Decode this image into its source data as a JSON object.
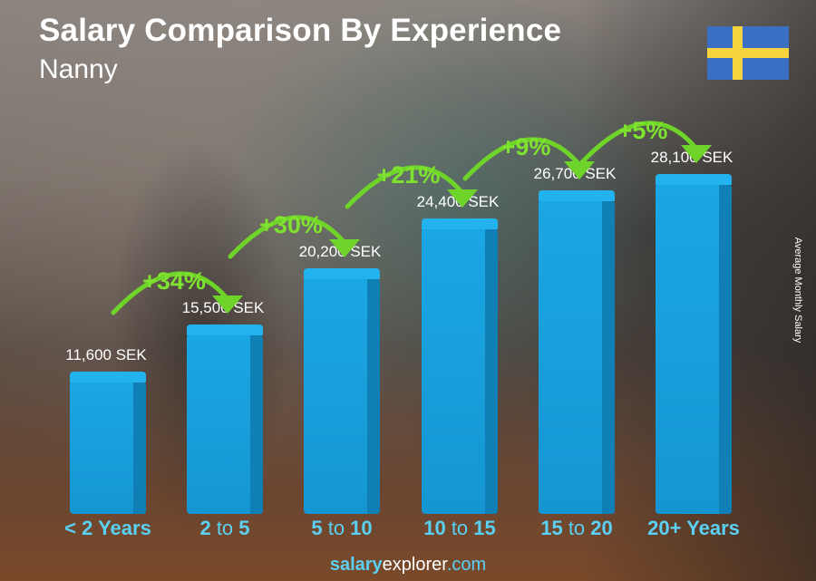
{
  "header": {
    "title": "Salary Comparison By Experience",
    "subtitle": "Nanny"
  },
  "flag": {
    "country": "Sweden",
    "icon": "sweden-flag-icon",
    "blue": "#3a6fc4",
    "yellow": "#f5d33c"
  },
  "y_axis_label": "Average Monthly Salary",
  "bars": [
    {
      "label": "11,600 SEK",
      "cat_a": "< 2 Years",
      "cat_b": "",
      "cat_c": ""
    },
    {
      "label": "15,500 SEK",
      "cat_a": "2",
      "cat_b": " to ",
      "cat_c": "5",
      "change": "+34%"
    },
    {
      "label": "20,200 SEK",
      "cat_a": "5",
      "cat_b": " to ",
      "cat_c": "10",
      "change": "+30%"
    },
    {
      "label": "24,400 SEK",
      "cat_a": "10",
      "cat_b": " to ",
      "cat_c": "15",
      "change": "+21%"
    },
    {
      "label": "26,700 SEK",
      "cat_a": "15",
      "cat_b": " to ",
      "cat_c": "20",
      "change": "+9%"
    },
    {
      "label": "28,100 SEK",
      "cat_a": "20+ Years",
      "cat_b": "",
      "cat_c": "",
      "change": "+5%"
    }
  ],
  "footer": {
    "bold": "salary",
    "normal": "explorer",
    "suffix": ".com"
  },
  "colors": {
    "bar": "#1ba6e4",
    "bar_side": "#0f7fb6",
    "category": "#5bd0f5",
    "change": "#7ee22f"
  },
  "chart_data": {
    "type": "bar",
    "title": "Salary Comparison By Experience",
    "subtitle": "Nanny",
    "categories": [
      "< 2 Years",
      "2 to 5",
      "5 to 10",
      "10 to 15",
      "15 to 20",
      "20+ Years"
    ],
    "values": [
      11600,
      15500,
      20200,
      24400,
      26700,
      28100
    ],
    "value_labels": [
      "11,600 SEK",
      "15,500 SEK",
      "20,200 SEK",
      "24,400 SEK",
      "26,700 SEK",
      "28,100 SEK"
    ],
    "changes": [
      "+34%",
      "+30%",
      "+21%",
      "+9%",
      "+5%"
    ],
    "currency": "SEK",
    "xlabel": "",
    "ylabel": "Average Monthly Salary",
    "grid": false,
    "legend": "none"
  }
}
